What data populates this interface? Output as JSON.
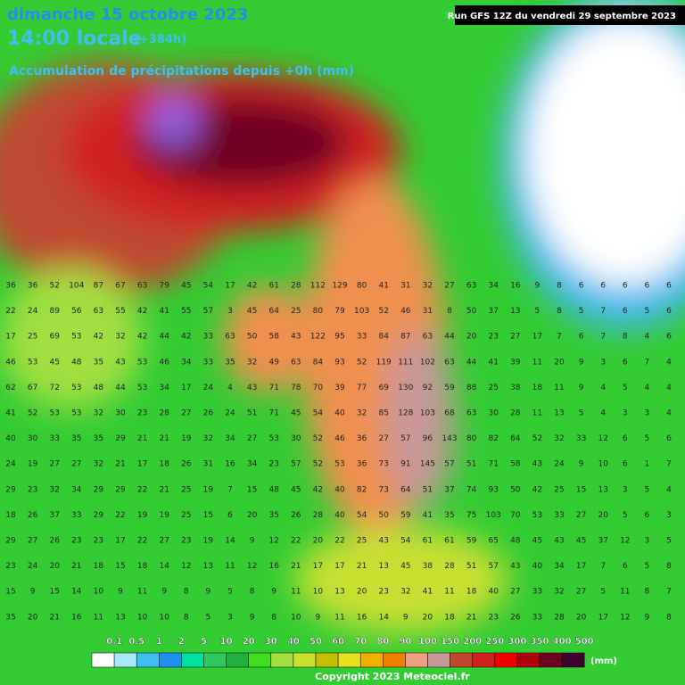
{
  "header": {
    "date": "dimanche 15 octobre 2023",
    "time": "14:00 locale",
    "lead": "(+384h)",
    "product": "Accumulation de précipitations depuis +0h (mm)",
    "run": "Run GFS 12Z du vendredi 29 septembre 2023"
  },
  "legend": {
    "unit": "(mm)",
    "labels": [
      "0.1",
      "0.5",
      "1",
      "2",
      "5",
      "10",
      "20",
      "30",
      "40",
      "50",
      "60",
      "70",
      "80",
      "90",
      "100",
      "150",
      "200",
      "250",
      "300",
      "350",
      "400",
      "500"
    ],
    "colors": [
      "#ffffff",
      "#a8e8f8",
      "#40c0f0",
      "#2090f0",
      "#00e0a0",
      "#30c860",
      "#20b040",
      "#40e020",
      "#a0e040",
      "#c8e030",
      "#c0c000",
      "#e8e020",
      "#f0b000",
      "#f08000",
      "#f0a080",
      "#c89898",
      "#c04830",
      "#d02020",
      "#f00000",
      "#b00010",
      "#700020",
      "#400030",
      "#9060e0"
    ]
  },
  "grid": {
    "rows": [
      [
        "36",
        "36",
        "52",
        "104",
        "87",
        "67",
        "63",
        "79",
        "45",
        "54",
        "17",
        "42",
        "61",
        "28",
        "112",
        "129",
        "80",
        "41",
        "31",
        "32",
        "27",
        "63",
        "34",
        "16",
        "9",
        "8",
        "6",
        "6",
        "6",
        "6",
        "6"
      ],
      [
        "22",
        "24",
        "89",
        "56",
        "63",
        "55",
        "42",
        "41",
        "55",
        "57",
        "3",
        "45",
        "64",
        "25",
        "80",
        "79",
        "103",
        "52",
        "46",
        "31",
        "8",
        "50",
        "37",
        "13",
        "5",
        "8",
        "5",
        "7",
        "6",
        "5",
        "6"
      ],
      [
        "17",
        "25",
        "69",
        "53",
        "42",
        "32",
        "42",
        "44",
        "42",
        "33",
        "63",
        "50",
        "58",
        "43",
        "122",
        "95",
        "33",
        "84",
        "87",
        "63",
        "44",
        "20",
        "23",
        "27",
        "17",
        "7",
        "6",
        "7",
        "8",
        "4",
        "6"
      ],
      [
        "46",
        "53",
        "45",
        "48",
        "35",
        "43",
        "53",
        "46",
        "34",
        "33",
        "35",
        "32",
        "49",
        "63",
        "84",
        "93",
        "52",
        "119",
        "111",
        "102",
        "63",
        "44",
        "41",
        "39",
        "11",
        "20",
        "9",
        "3",
        "6",
        "7",
        "4"
      ],
      [
        "62",
        "67",
        "72",
        "53",
        "48",
        "44",
        "53",
        "34",
        "17",
        "24",
        "4",
        "43",
        "71",
        "78",
        "70",
        "39",
        "77",
        "69",
        "130",
        "92",
        "59",
        "88",
        "25",
        "38",
        "18",
        "11",
        "9",
        "4",
        "5",
        "4",
        "4"
      ],
      [
        "41",
        "52",
        "53",
        "53",
        "32",
        "30",
        "23",
        "28",
        "27",
        "26",
        "24",
        "51",
        "71",
        "45",
        "54",
        "40",
        "32",
        "85",
        "128",
        "103",
        "68",
        "63",
        "30",
        "28",
        "11",
        "13",
        "5",
        "4",
        "3",
        "3",
        "4"
      ],
      [
        "40",
        "30",
        "33",
        "35",
        "35",
        "29",
        "21",
        "21",
        "19",
        "32",
        "34",
        "27",
        "53",
        "30",
        "52",
        "46",
        "36",
        "27",
        "57",
        "96",
        "143",
        "80",
        "82",
        "64",
        "52",
        "32",
        "33",
        "12",
        "6",
        "5",
        "6"
      ],
      [
        "24",
        "19",
        "27",
        "27",
        "32",
        "21",
        "17",
        "18",
        "26",
        "31",
        "16",
        "34",
        "23",
        "57",
        "52",
        "53",
        "36",
        "73",
        "91",
        "145",
        "57",
        "51",
        "71",
        "58",
        "43",
        "24",
        "9",
        "10",
        "6",
        "1",
        "7"
      ],
      [
        "29",
        "23",
        "32",
        "34",
        "29",
        "29",
        "22",
        "21",
        "25",
        "19",
        "7",
        "15",
        "48",
        "45",
        "42",
        "40",
        "82",
        "73",
        "64",
        "51",
        "37",
        "74",
        "93",
        "50",
        "42",
        "25",
        "15",
        "13",
        "3",
        "5",
        "4"
      ],
      [
        "18",
        "26",
        "37",
        "33",
        "29",
        "22",
        "19",
        "19",
        "25",
        "15",
        "6",
        "20",
        "35",
        "26",
        "28",
        "40",
        "54",
        "50",
        "59",
        "41",
        "35",
        "75",
        "103",
        "70",
        "53",
        "33",
        "27",
        "20",
        "5",
        "6",
        "3"
      ],
      [
        "29",
        "27",
        "26",
        "23",
        "23",
        "17",
        "22",
        "27",
        "23",
        "19",
        "14",
        "9",
        "12",
        "22",
        "20",
        "22",
        "25",
        "43",
        "54",
        "61",
        "61",
        "59",
        "65",
        "48",
        "45",
        "43",
        "45",
        "37",
        "12",
        "3",
        "5"
      ],
      [
        "23",
        "24",
        "20",
        "21",
        "18",
        "15",
        "18",
        "14",
        "12",
        "13",
        "11",
        "12",
        "16",
        "21",
        "17",
        "17",
        "21",
        "13",
        "45",
        "38",
        "28",
        "51",
        "57",
        "43",
        "40",
        "34",
        "17",
        "7",
        "6",
        "5",
        "8"
      ],
      [
        "15",
        "9",
        "15",
        "14",
        "10",
        "9",
        "11",
        "9",
        "8",
        "9",
        "5",
        "8",
        "9",
        "11",
        "10",
        "13",
        "20",
        "23",
        "32",
        "41",
        "11",
        "18",
        "40",
        "27",
        "33",
        "32",
        "27",
        "5",
        "11",
        "8",
        "7"
      ],
      [
        "35",
        "20",
        "21",
        "16",
        "11",
        "13",
        "10",
        "10",
        "8",
        "5",
        "3",
        "9",
        "8",
        "10",
        "9",
        "11",
        "16",
        "14",
        "9",
        "20",
        "18",
        "21",
        "23",
        "26",
        "33",
        "28",
        "20",
        "17",
        "12",
        "9",
        "8"
      ]
    ]
  },
  "copyright": "Copyright 2023 Meteociel.fr"
}
